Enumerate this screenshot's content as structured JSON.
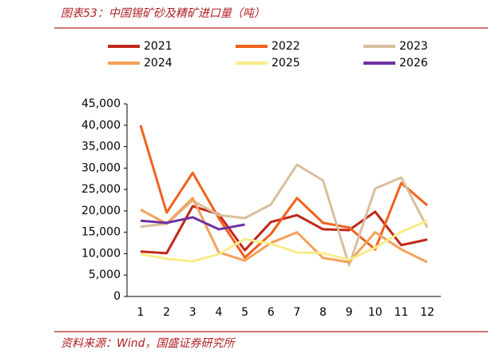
{
  "title": "图表53：中国锡矿砂及精矿进口量（吨）",
  "source": "资料来源：Wind，国盛证券研究所",
  "chart_data": {
    "type": "line",
    "categories": [
      "1",
      "2",
      "3",
      "4",
      "5",
      "6",
      "7",
      "8",
      "9",
      "10",
      "11",
      "12"
    ],
    "series": [
      {
        "name": "2021",
        "color": "#c0281a",
        "values": [
          10500,
          10100,
          21100,
          19200,
          10800,
          17400,
          19000,
          15700,
          15500,
          19800,
          12000,
          13300
        ]
      },
      {
        "name": "2022",
        "color": "#f2611d",
        "values": [
          40000,
          19600,
          28900,
          18300,
          9100,
          14600,
          23000,
          17200,
          16100,
          11000,
          26500,
          21300
        ]
      },
      {
        "name": "2023",
        "color": "#d8bf9c",
        "values": [
          16300,
          17000,
          22400,
          19000,
          18300,
          21500,
          30800,
          27100,
          7300,
          25200,
          27800,
          16100
        ]
      },
      {
        "name": "2024",
        "color": "#f4a15a",
        "values": [
          20300,
          17000,
          23000,
          10300,
          8400,
          12500,
          15000,
          9000,
          8000,
          15000,
          11000,
          8000
        ]
      },
      {
        "name": "2025",
        "color": "#f8ec8c",
        "values": [
          9900,
          8800,
          8200,
          9900,
          13400,
          12300,
          10300,
          10100,
          8600,
          11400,
          15100,
          17700
        ]
      },
      {
        "name": "2026",
        "color": "#7030a0",
        "values": [
          17700,
          17200,
          18500,
          15700,
          16800,
          null,
          null,
          null,
          null,
          null,
          null,
          null
        ]
      }
    ],
    "ylim": [
      0,
      45000
    ],
    "yticks": [
      0,
      {
        "value": 5000,
        "label": "5,000"
      },
      {
        "value": 10000,
        "label": "10,000"
      },
      {
        "value": 15000,
        "label": "15,000"
      },
      {
        "value": 20000,
        "label": "20,000"
      },
      {
        "value": 25000,
        "label": "25,000"
      },
      {
        "value": 30000,
        "label": "30,000"
      },
      {
        "value": 35000,
        "label": "35,000"
      },
      {
        "value": 40000,
        "label": "40,000"
      },
      {
        "value": 45000,
        "label": "45,000"
      }
    ]
  }
}
